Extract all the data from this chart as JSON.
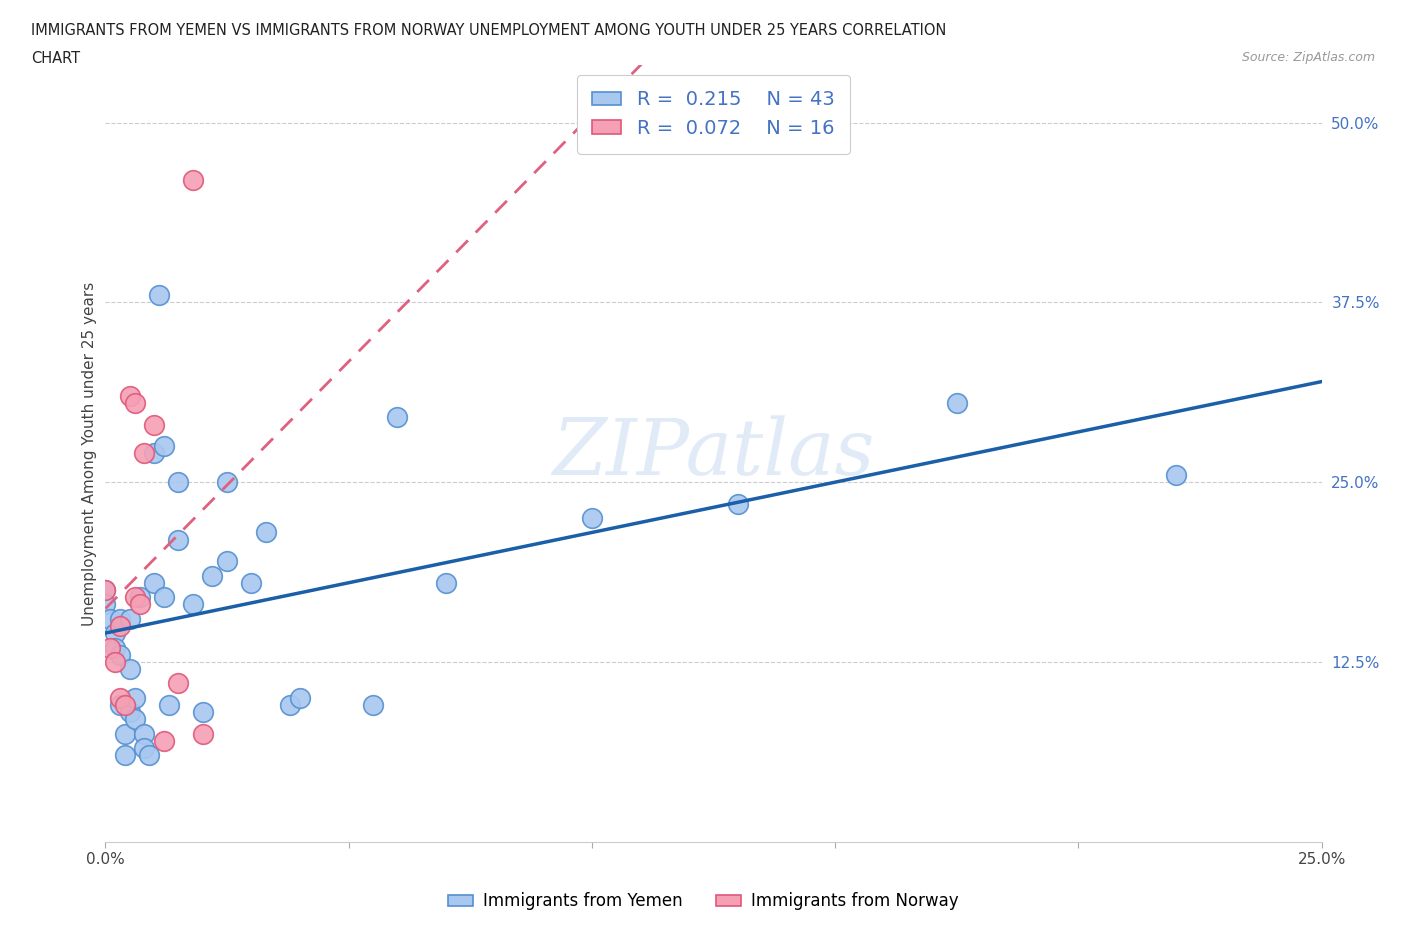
{
  "title_line1": "IMMIGRANTS FROM YEMEN VS IMMIGRANTS FROM NORWAY UNEMPLOYMENT AMONG YOUTH UNDER 25 YEARS CORRELATION",
  "title_line2": "CHART",
  "source": "Source: ZipAtlas.com",
  "ylabel": "Unemployment Among Youth under 25 years",
  "yemen_color": "#A8C8F0",
  "norway_color": "#F5A0B5",
  "yemen_edge_color": "#5590D0",
  "norway_edge_color": "#E05878",
  "trendline_yemen_color": "#1A5FA8",
  "trendline_norway_color": "#E06080",
  "R_yemen": 0.215,
  "N_yemen": 43,
  "R_norway": 0.072,
  "N_norway": 16,
  "yemen_x": [
    0.0,
    0.0,
    0.001,
    0.002,
    0.002,
    0.003,
    0.003,
    0.003,
    0.004,
    0.004,
    0.005,
    0.005,
    0.005,
    0.006,
    0.006,
    0.007,
    0.008,
    0.008,
    0.009,
    0.01,
    0.01,
    0.011,
    0.012,
    0.012,
    0.013,
    0.015,
    0.015,
    0.018,
    0.02,
    0.022,
    0.025,
    0.025,
    0.03,
    0.033,
    0.038,
    0.04,
    0.055,
    0.06,
    0.07,
    0.1,
    0.13,
    0.175,
    0.22
  ],
  "yemen_y": [
    0.175,
    0.165,
    0.155,
    0.145,
    0.135,
    0.155,
    0.13,
    0.095,
    0.075,
    0.06,
    0.155,
    0.12,
    0.09,
    0.085,
    0.1,
    0.17,
    0.075,
    0.065,
    0.06,
    0.18,
    0.27,
    0.38,
    0.17,
    0.275,
    0.095,
    0.21,
    0.25,
    0.165,
    0.09,
    0.185,
    0.25,
    0.195,
    0.18,
    0.215,
    0.095,
    0.1,
    0.095,
    0.295,
    0.18,
    0.225,
    0.235,
    0.305,
    0.255
  ],
  "norway_x": [
    0.0,
    0.001,
    0.002,
    0.003,
    0.003,
    0.004,
    0.005,
    0.006,
    0.006,
    0.007,
    0.008,
    0.01,
    0.012,
    0.015,
    0.018,
    0.02
  ],
  "norway_y": [
    0.175,
    0.135,
    0.125,
    0.15,
    0.1,
    0.095,
    0.31,
    0.305,
    0.17,
    0.165,
    0.27,
    0.29,
    0.07,
    0.11,
    0.46,
    0.075
  ],
  "watermark_text": "ZIPatlas",
  "background_color": "#FFFFFF",
  "xlim": [
    0.0,
    0.25
  ],
  "ylim": [
    0.0,
    0.54
  ],
  "ytick_pos": [
    0.125,
    0.25,
    0.375,
    0.5
  ],
  "ytick_labels": [
    "12.5%",
    "25.0%",
    "37.5%",
    "50.0%"
  ],
  "xtick_pos": [
    0.0,
    0.25
  ],
  "xtick_labels": [
    "0.0%",
    "25.0%"
  ]
}
